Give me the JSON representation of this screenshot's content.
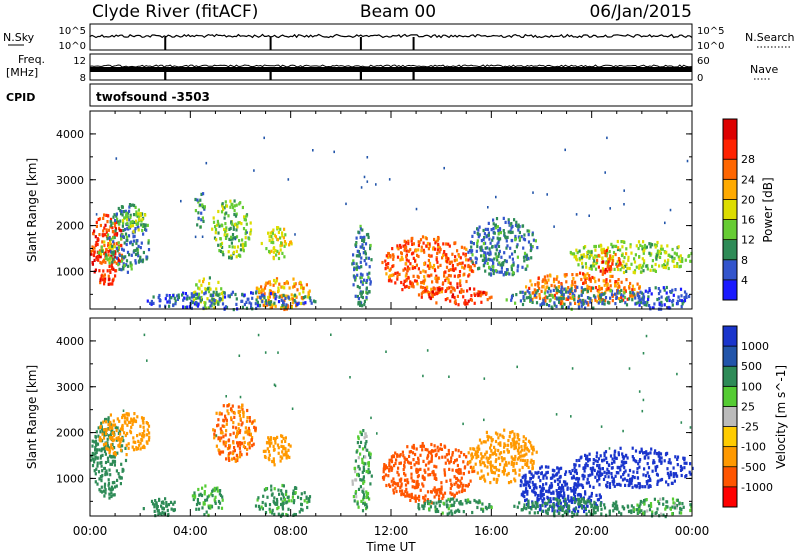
{
  "header": {
    "station": "Clyde River (fitACF)",
    "beam": "Beam 00",
    "date": "06/Jan/2015"
  },
  "panels": {
    "nsky": {
      "label": "N.Sky",
      "tick_top": "10^5",
      "tick_bottom": "10^0"
    },
    "nsearch": {
      "label": "N.Search",
      "tick_top": "10^5",
      "tick_bottom": "10^0"
    },
    "freq": {
      "label_line1": "Freq.",
      "label_line2": "[MHz]",
      "tick_top": "12",
      "tick_bottom": "8"
    },
    "nave": {
      "label": "Nave",
      "tick_top": "60",
      "tick_bottom": "0"
    },
    "cpid": {
      "label": "CPID",
      "value": "twofsound -3503"
    }
  },
  "colors": {
    "power_scale": [
      "#1a1aff",
      "#3355cc",
      "#2e8b57",
      "#66cc33",
      "#dddd00",
      "#ffaa00",
      "#ff6600",
      "#ff2200",
      "#dd0000"
    ],
    "velocity_scale": [
      "#1a35cc",
      "#2255aa",
      "#2e8b57",
      "#55cc33",
      "#bbbbbb",
      "#ffcc00",
      "#ff9900",
      "#ff5500",
      "#ff0000"
    ]
  },
  "chart_data": [
    {
      "type": "heatmap",
      "title": "Power",
      "xlabel": "",
      "ylabel": "Slant Range [km]",
      "xlim": [
        "00:00",
        "24:00"
      ],
      "ylim": [
        180,
        4500
      ],
      "x_ticks": [
        "00:00",
        "04:00",
        "08:00",
        "12:00",
        "16:00",
        "20:00",
        "00:00"
      ],
      "y_ticks": [
        "1000",
        "2000",
        "3000",
        "4000"
      ],
      "colorbar": {
        "label": "Power [dB]",
        "ticks": [
          "4",
          "8",
          "12",
          "16",
          "20",
          "24",
          "28"
        ]
      },
      "blobs": [
        {
          "t0": 0.0,
          "t1": 1.3,
          "r0": 700,
          "r1": 2300,
          "v": 26
        },
        {
          "t0": 0.3,
          "t1": 1.0,
          "r0": 1200,
          "r1": 1700,
          "v": 14
        },
        {
          "t0": 0.6,
          "t1": 2.4,
          "r0": 1000,
          "r1": 2500,
          "v": 8
        },
        {
          "t0": 1.2,
          "t1": 2.3,
          "r0": 1900,
          "r1": 2350,
          "v": 14
        },
        {
          "t0": 4.1,
          "t1": 4.6,
          "r0": 2000,
          "r1": 2800,
          "v": 10
        },
        {
          "t0": 4.0,
          "t1": 5.3,
          "r0": 200,
          "r1": 900,
          "v": 14
        },
        {
          "t0": 4.8,
          "t1": 6.4,
          "r0": 1300,
          "r1": 2600,
          "v": 12
        },
        {
          "t0": 6.8,
          "t1": 8.0,
          "r0": 1300,
          "r1": 2000,
          "v": 16
        },
        {
          "t0": 6.5,
          "t1": 8.8,
          "r0": 200,
          "r1": 900,
          "v": 20
        },
        {
          "t0": 2.0,
          "t1": 9.0,
          "r0": 200,
          "r1": 600,
          "v": 6
        },
        {
          "t0": 10.4,
          "t1": 11.2,
          "r0": 250,
          "r1": 2100,
          "v": 8
        },
        {
          "t0": 11.6,
          "t1": 15.3,
          "r0": 500,
          "r1": 1800,
          "v": 24
        },
        {
          "t0": 13.0,
          "t1": 16.0,
          "r0": 300,
          "r1": 700,
          "v": 26
        },
        {
          "t0": 15.0,
          "t1": 17.8,
          "r0": 900,
          "r1": 2200,
          "v": 8
        },
        {
          "t0": 17.0,
          "t1": 22.0,
          "r0": 300,
          "r1": 1000,
          "v": 22
        },
        {
          "t0": 16.5,
          "t1": 22.0,
          "r0": 200,
          "r1": 700,
          "v": 8
        },
        {
          "t0": 19.0,
          "t1": 24.0,
          "r0": 1000,
          "r1": 1700,
          "v": 14
        },
        {
          "t0": 20.0,
          "t1": 21.2,
          "r0": 1000,
          "r1": 1500,
          "v": 26
        },
        {
          "t0": 21.5,
          "t1": 24.0,
          "r0": 200,
          "r1": 700,
          "v": 6
        }
      ]
    },
    {
      "type": "heatmap",
      "title": "Velocity",
      "xlabel": "Time UT",
      "ylabel": "Slant Range [km]",
      "xlim": [
        "00:00",
        "24:00"
      ],
      "ylim": [
        180,
        4500
      ],
      "x_ticks": [
        "00:00",
        "04:00",
        "08:00",
        "12:00",
        "16:00",
        "20:00",
        "00:00"
      ],
      "y_ticks": [
        "1000",
        "2000",
        "3000",
        "4000"
      ],
      "colorbar": {
        "label": "Velocity [m s^-1]",
        "ticks": [
          "1000",
          "500",
          "100",
          "25",
          "-25",
          "-100",
          "-500",
          "-1000"
        ]
      },
      "blobs": [
        {
          "t0": 0.0,
          "t1": 1.4,
          "r0": 600,
          "r1": 2400,
          "v": 150
        },
        {
          "t0": 0.3,
          "t1": 2.4,
          "r0": 1500,
          "r1": 2500,
          "v": -200
        },
        {
          "t0": 2.0,
          "t1": 3.5,
          "r0": 200,
          "r1": 600,
          "v": 150
        },
        {
          "t0": 4.0,
          "t1": 5.3,
          "r0": 200,
          "r1": 900,
          "v": 80
        },
        {
          "t0": 4.8,
          "t1": 6.6,
          "r0": 1400,
          "r1": 2700,
          "v": -300
        },
        {
          "t0": 6.5,
          "t1": 8.8,
          "r0": 200,
          "r1": 900,
          "v": 100
        },
        {
          "t0": 6.8,
          "t1": 8.0,
          "r0": 1300,
          "r1": 2000,
          "v": -150
        },
        {
          "t0": 10.4,
          "t1": 11.2,
          "r0": 250,
          "r1": 2100,
          "v": 60
        },
        {
          "t0": 11.6,
          "t1": 15.3,
          "r0": 500,
          "r1": 1800,
          "v": -400
        },
        {
          "t0": 13.0,
          "t1": 16.0,
          "r0": 250,
          "r1": 600,
          "v": 100
        },
        {
          "t0": 15.0,
          "t1": 17.8,
          "r0": 900,
          "r1": 2100,
          "v": -150
        },
        {
          "t0": 17.0,
          "t1": 19.5,
          "r0": 300,
          "r1": 1300,
          "v": 700
        },
        {
          "t0": 18.2,
          "t1": 20.5,
          "r0": 300,
          "r1": 900,
          "v": 900
        },
        {
          "t0": 19.0,
          "t1": 24.0,
          "r0": 800,
          "r1": 1700,
          "v": 800
        },
        {
          "t0": 16.5,
          "t1": 22.0,
          "r0": 200,
          "r1": 600,
          "v": 150
        },
        {
          "t0": 21.5,
          "t1": 24.0,
          "r0": 200,
          "r1": 600,
          "v": 60
        }
      ]
    }
  ]
}
